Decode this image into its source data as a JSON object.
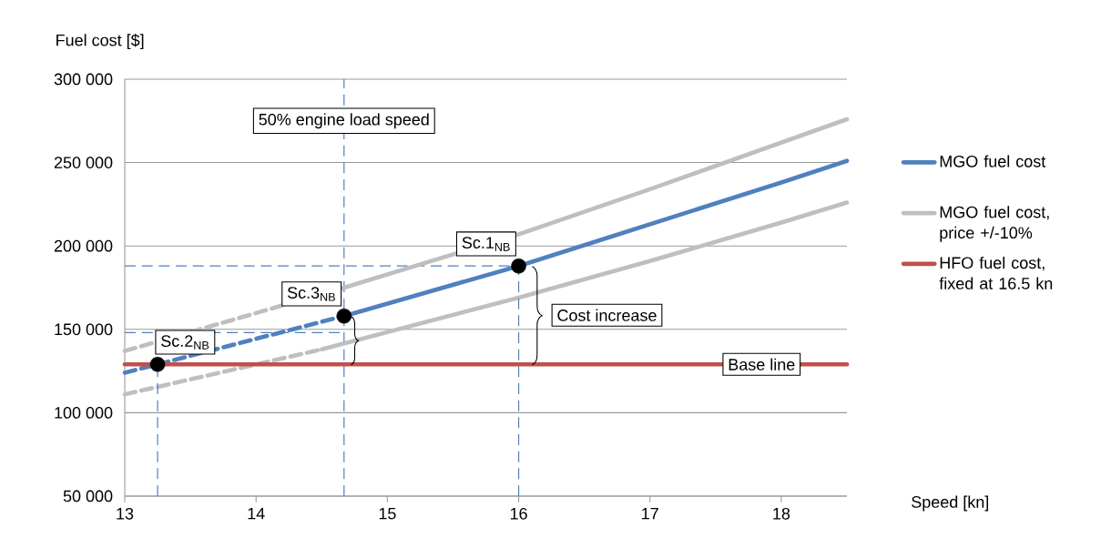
{
  "chart_data": {
    "type": "line",
    "xlabel": "Speed [kn]",
    "ylabel": "Fuel cost [$]",
    "xlim": [
      13,
      18.5
    ],
    "xticks": [
      13,
      14,
      15,
      16,
      17,
      18
    ],
    "ylim": [
      50000,
      300000
    ],
    "yticks": [
      {
        "value": 50000,
        "label": "50 000"
      },
      {
        "value": 100000,
        "label": "100 000"
      },
      {
        "value": 150000,
        "label": "150 000"
      },
      {
        "value": 200000,
        "label": "200 000"
      },
      {
        "value": 250000,
        "label": "250 000"
      },
      {
        "value": 300000,
        "label": "300 000"
      }
    ],
    "grid": "y",
    "legend": "right",
    "marker": "none",
    "line_style": "solid",
    "series": [
      {
        "name": "MGO fuel cost",
        "color": "#4f81bd",
        "x": [
          14.67,
          16,
          17,
          18,
          18.5
        ],
        "values": [
          158000,
          188000,
          213000,
          238000,
          251000
        ]
      },
      {
        "name": "MGO fuel cost, price  +/-10%",
        "color": "#bfbfbf",
        "x": [
          14.67,
          16,
          17,
          18,
          18.5
        ],
        "values": [
          175000,
          207000,
          234000,
          262000,
          276000
        ]
      },
      {
        "name": "HFO fuel cost, fixed at 16.5 kn",
        "color": "#c0504d",
        "x": [
          13,
          18.5
        ],
        "values": [
          129000,
          129000
        ]
      },
      {
        "color": "#bfbfbf",
        "x": [
          14.5,
          16,
          17,
          18,
          18.5
        ],
        "values": [
          138000,
          169000,
          191000,
          214000,
          226000
        ]
      },
      {
        "color": "#bfbfbf",
        "line_style": "dashed",
        "x": [
          13,
          14.67
        ],
        "values": [
          137000,
          175000
        ]
      },
      {
        "color": "#bfbfbf",
        "line_style": "dashed",
        "x": [
          13,
          14.5
        ],
        "values": [
          111000,
          138000
        ]
      },
      {
        "color": "#4f81bd",
        "line_style": "dashed",
        "x": [
          13,
          13.25,
          14.67
        ],
        "values": [
          124000,
          129000,
          158000
        ]
      },
      {
        "color": "#4f81bd",
        "line_style": "dashed",
        "x": [
          13.25,
          13.25
        ],
        "values": [
          50000,
          129000
        ]
      },
      {
        "color": "#4f81bd",
        "line_style": "dashed",
        "x": [
          16,
          16
        ],
        "values": [
          50000,
          188000
        ]
      },
      {
        "color": "#4f81bd",
        "line_style": "dashed",
        "x": [
          13,
          16
        ],
        "values": [
          188000,
          188000
        ]
      },
      {
        "color": "#4f81bd",
        "line_style": "dashed",
        "x": [
          13,
          14.67
        ],
        "values": [
          148000,
          148000
        ]
      },
      {
        "type": "scatter",
        "marker": "circle",
        "color": "#000000",
        "x": [
          13.25,
          14.67,
          16
        ],
        "values": [
          129000,
          158000,
          188000
        ]
      }
    ],
    "ref_lines": [
      {
        "axis": "x",
        "value": 14.67,
        "label": "50% engine load speed",
        "color": "#4f81bd",
        "line_style": "dashed"
      }
    ],
    "annotations": [
      {
        "text": "Sc.1$_{NB}$",
        "x": 16,
        "y": 188000
      },
      {
        "text": "Sc.3$_{NB}$",
        "x": 14.67,
        "y": 158000
      },
      {
        "text": "Sc.2$_{NB}$",
        "x": 13.25,
        "y": 129000
      },
      "Cost increase",
      {
        "text": "Base line",
        "x": 17.85,
        "y": 129000
      }
    ]
  }
}
